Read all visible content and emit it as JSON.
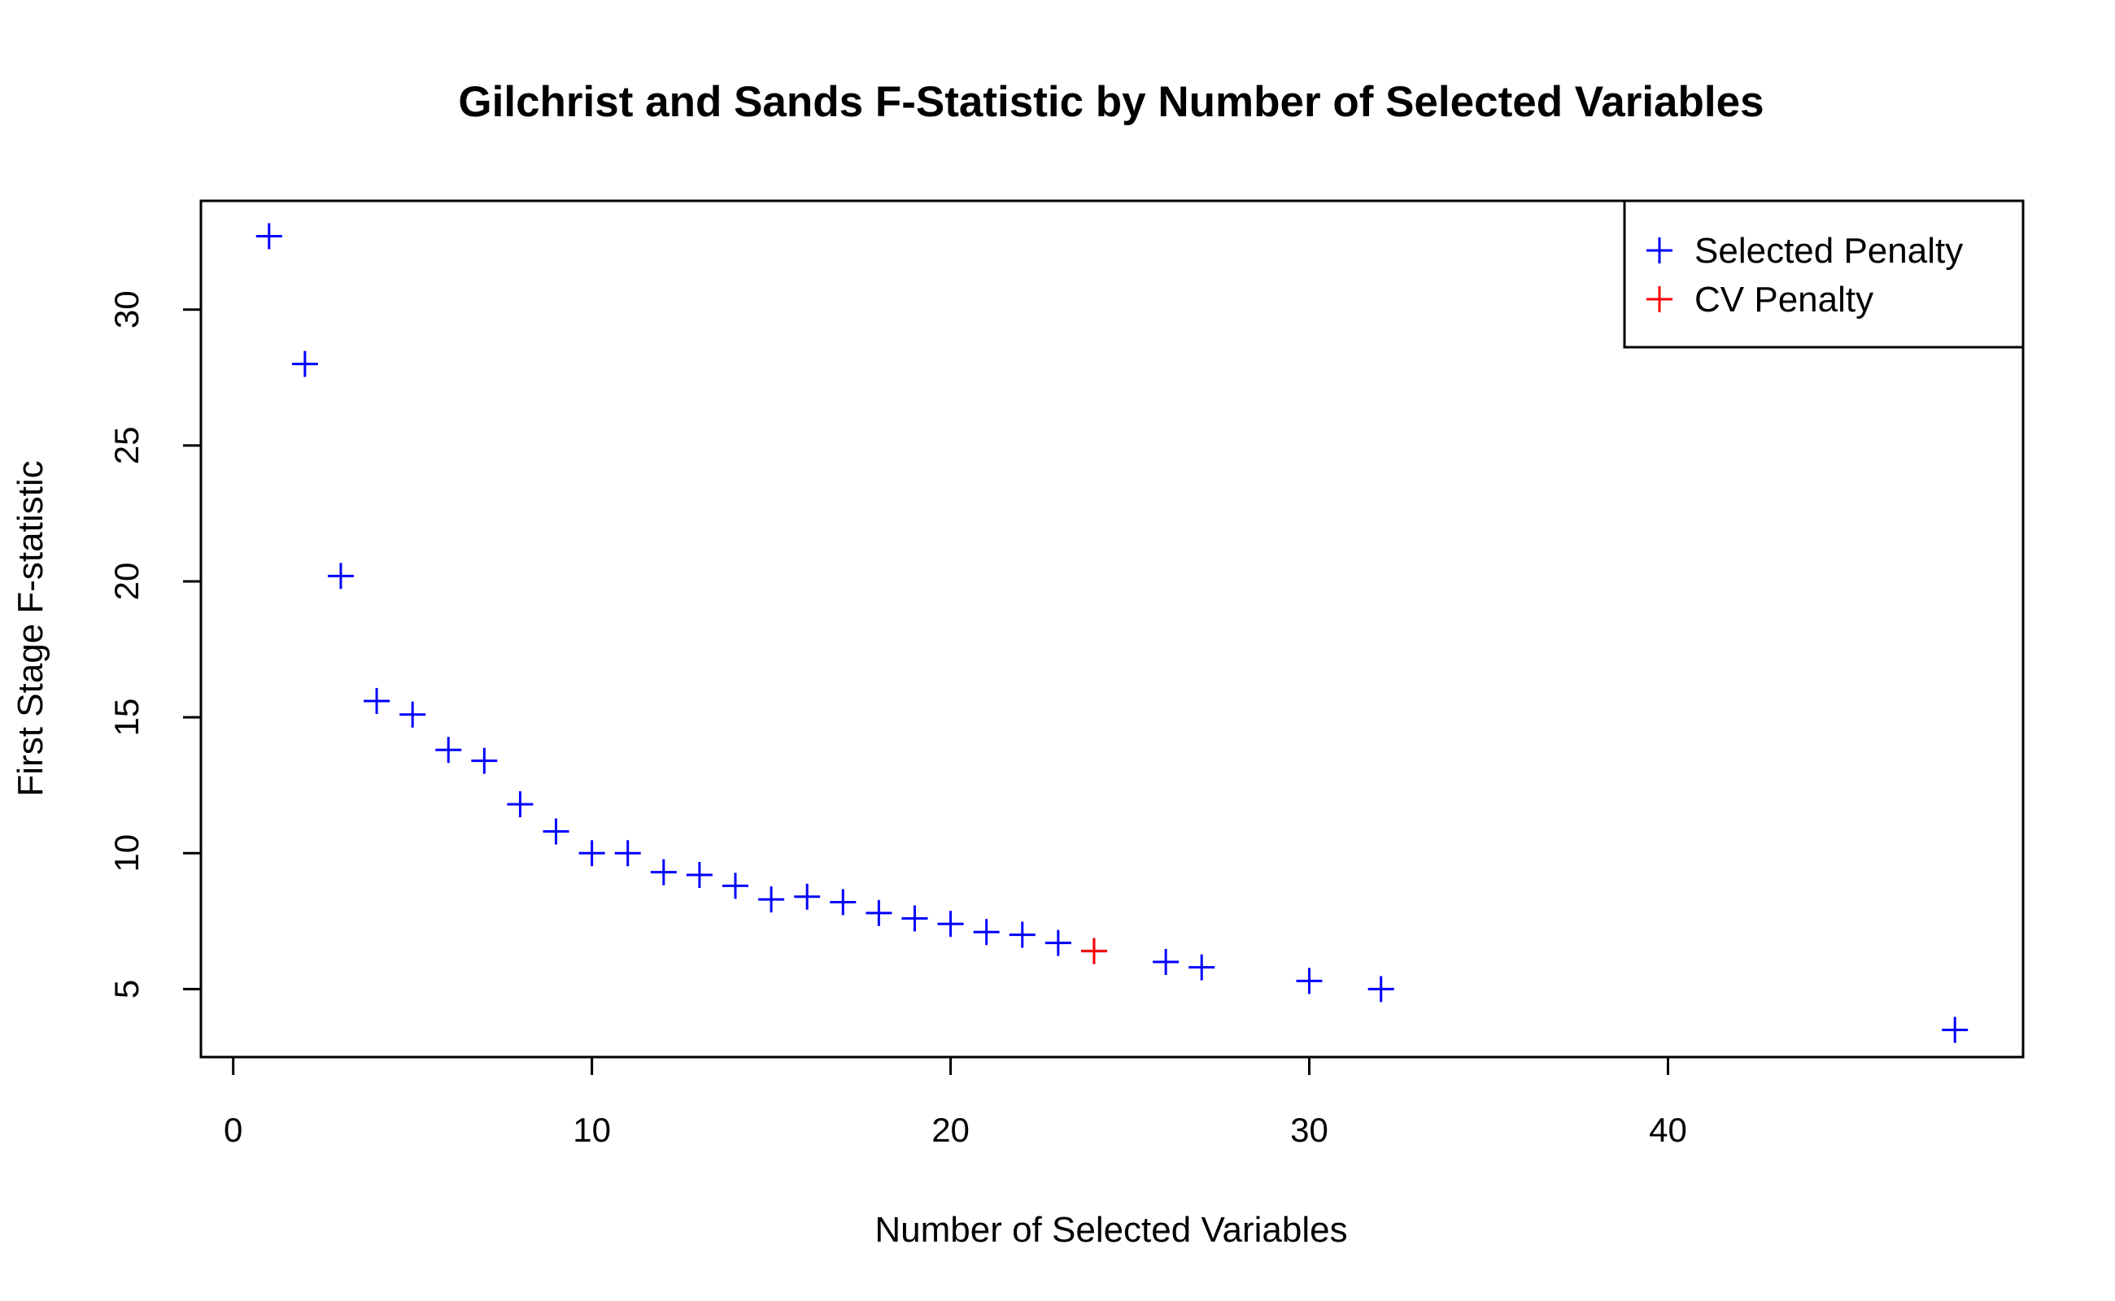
{
  "chart_data": {
    "type": "scatter",
    "title": "Gilchrist and Sands F-Statistic by Number of Selected Variables",
    "xlabel": "Number of Selected Variables",
    "ylabel": "First Stage F-statistic",
    "xlim": [
      -0.9,
      49.9
    ],
    "ylim": [
      2.5,
      34.0
    ],
    "x_ticks": [
      0,
      10,
      20,
      30,
      40
    ],
    "y_ticks": [
      5,
      10,
      15,
      20,
      25,
      30
    ],
    "grid": false,
    "legend_position": "top-right",
    "series": [
      {
        "name": "Selected Penalty",
        "color": "#0000ff",
        "marker": "plus",
        "points": [
          [
            1,
            32.7
          ],
          [
            2,
            28.0
          ],
          [
            3,
            20.2
          ],
          [
            4,
            15.6
          ],
          [
            5,
            15.1
          ],
          [
            6,
            13.8
          ],
          [
            7,
            13.4
          ],
          [
            8,
            11.8
          ],
          [
            9,
            10.8
          ],
          [
            10,
            10.0
          ],
          [
            11,
            10.0
          ],
          [
            12,
            9.3
          ],
          [
            13,
            9.2
          ],
          [
            14,
            8.8
          ],
          [
            15,
            8.3
          ],
          [
            16,
            8.4
          ],
          [
            17,
            8.2
          ],
          [
            18,
            7.8
          ],
          [
            19,
            7.6
          ],
          [
            20,
            7.4
          ],
          [
            21,
            7.1
          ],
          [
            22,
            7.0
          ],
          [
            23,
            6.7
          ],
          [
            24,
            6.4
          ],
          [
            26,
            6.0
          ],
          [
            27,
            5.8
          ],
          [
            30,
            5.3
          ],
          [
            32,
            5.0
          ],
          [
            48,
            3.5
          ]
        ]
      },
      {
        "name": "CV Penalty",
        "color": "#ff0000",
        "marker": "plus",
        "points": [
          [
            24,
            6.4
          ]
        ]
      }
    ]
  }
}
